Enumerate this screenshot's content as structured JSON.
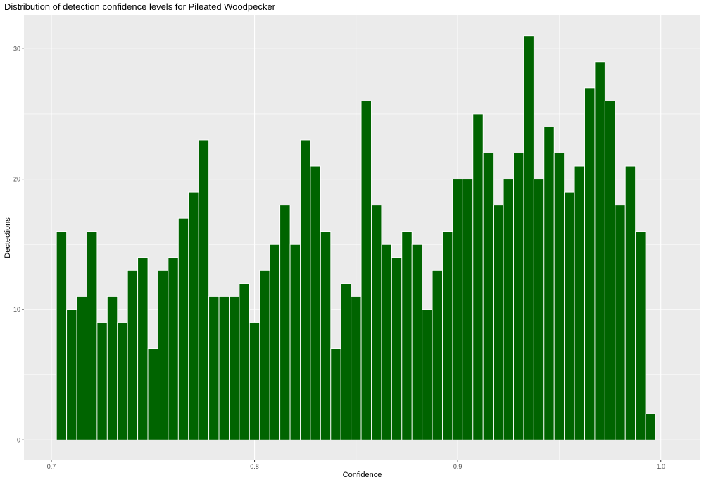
{
  "chart_data": {
    "type": "bar",
    "title": "Distribution of detection confidence levels for Pileated Woodpecker",
    "xlabel": "Confidence",
    "ylabel": "Dectections",
    "x_ticks": [
      "0.7",
      "0.8",
      "0.9",
      "1.0"
    ],
    "y_ticks": [
      "0",
      "10",
      "20",
      "30"
    ],
    "xlim": [
      0.6865,
      1.0195
    ],
    "ylim": [
      -1.55,
      32.55
    ],
    "grid": true,
    "fill_color": "#006400",
    "edge_color": "#ffffff",
    "panel_color": "#ebebeb",
    "bin_width": 0.005,
    "bins_start": 0.7025,
    "values": [
      16,
      10,
      11,
      16,
      9,
      11,
      9,
      13,
      14,
      7,
      13,
      14,
      17,
      19,
      23,
      11,
      11,
      11,
      12,
      9,
      13,
      15,
      18,
      15,
      23,
      21,
      16,
      7,
      12,
      11,
      26,
      18,
      15,
      14,
      16,
      15,
      10,
      13,
      16,
      20,
      20,
      25,
      22,
      18,
      20,
      22,
      31,
      20,
      24,
      22,
      19,
      21,
      27,
      29,
      26,
      18,
      21,
      16,
      2
    ]
  }
}
